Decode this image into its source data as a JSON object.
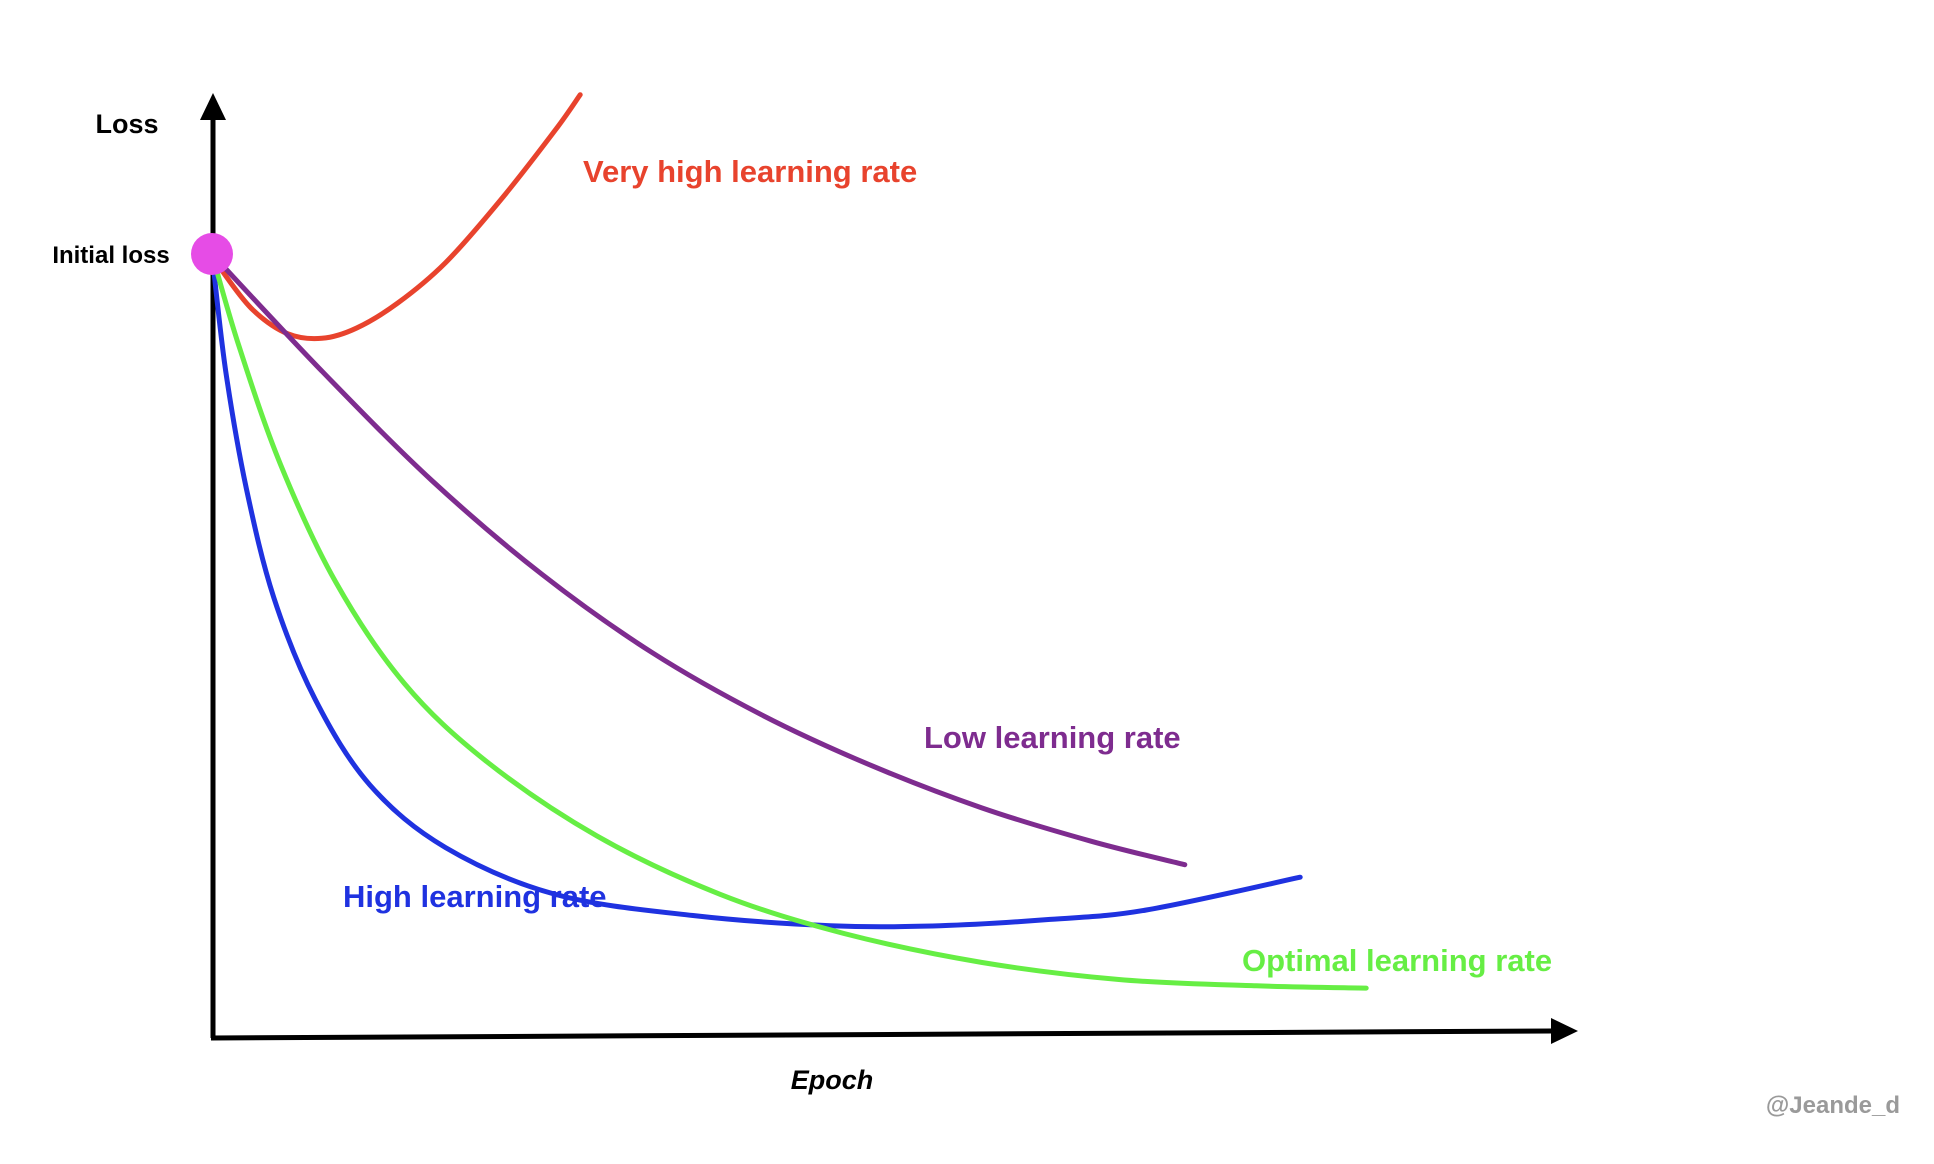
{
  "chart_data": {
    "type": "line",
    "xlabel": "Epoch",
    "ylabel": "Loss",
    "start_point": {
      "label": "Initial loss",
      "color": "#e64ce6"
    },
    "series": [
      {
        "name": "Very high learning rate",
        "color": "#e8432d",
        "points": [
          [
            0.0,
            0.0
          ],
          [
            0.01,
            -0.028
          ],
          [
            0.03,
            -0.072
          ],
          [
            0.055,
            -0.102
          ],
          [
            0.08,
            -0.108
          ],
          [
            0.105,
            -0.095
          ],
          [
            0.135,
            -0.063
          ],
          [
            0.17,
            -0.011
          ],
          [
            0.21,
            0.069
          ],
          [
            0.25,
            0.159
          ],
          [
            0.268,
            0.204
          ]
        ]
      },
      {
        "name": "Low learning rate",
        "color": "#7e2c8f",
        "points": [
          [
            0.0,
            0.0
          ],
          [
            0.08,
            -0.15
          ],
          [
            0.16,
            -0.29
          ],
          [
            0.24,
            -0.41
          ],
          [
            0.32,
            -0.51
          ],
          [
            0.4,
            -0.59
          ],
          [
            0.48,
            -0.655
          ],
          [
            0.56,
            -0.709
          ],
          [
            0.64,
            -0.752
          ],
          [
            0.708,
            -0.782
          ]
        ]
      },
      {
        "name": "High learning rate",
        "color": "#1f32e0",
        "points": [
          [
            0.0,
            0.0
          ],
          [
            0.01,
            -0.15
          ],
          [
            0.025,
            -0.3
          ],
          [
            0.045,
            -0.44
          ],
          [
            0.075,
            -0.57
          ],
          [
            0.115,
            -0.68
          ],
          [
            0.17,
            -0.76
          ],
          [
            0.25,
            -0.82
          ],
          [
            0.35,
            -0.847
          ],
          [
            0.45,
            -0.86
          ],
          [
            0.53,
            -0.86
          ],
          [
            0.61,
            -0.852
          ],
          [
            0.68,
            -0.84
          ],
          [
            0.792,
            -0.798
          ]
        ]
      },
      {
        "name": "Optimal learning rate",
        "color": "#66ee44",
        "points": [
          [
            0.0,
            0.0
          ],
          [
            0.02,
            -0.12
          ],
          [
            0.05,
            -0.27
          ],
          [
            0.09,
            -0.42
          ],
          [
            0.14,
            -0.55
          ],
          [
            0.2,
            -0.65
          ],
          [
            0.28,
            -0.745
          ],
          [
            0.37,
            -0.82
          ],
          [
            0.46,
            -0.87
          ],
          [
            0.56,
            -0.907
          ],
          [
            0.66,
            -0.929
          ],
          [
            0.76,
            -0.937
          ],
          [
            0.84,
            -0.94
          ]
        ]
      }
    ],
    "xlim": [
      0,
      1
    ],
    "ylim": [
      -1.05,
      0.3
    ],
    "grid": false,
    "legend": "none"
  },
  "watermark": "@Jeande_d"
}
